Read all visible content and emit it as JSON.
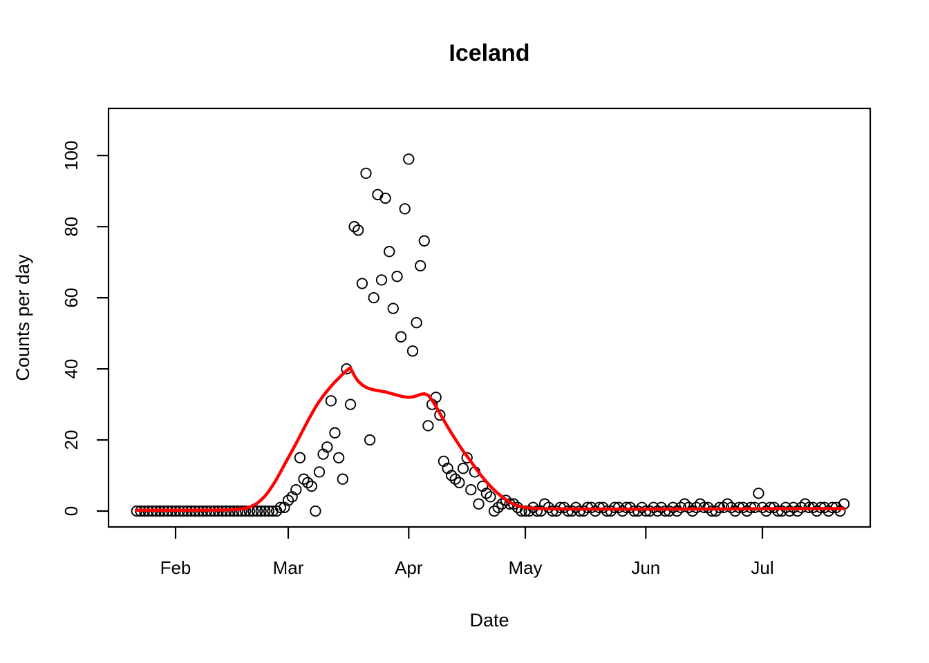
{
  "figure": {
    "title": "Iceland",
    "x_axis_label": "Date",
    "y_axis_label": "Counts per day"
  },
  "colors": {
    "background": "#FFFFFF",
    "points": "#000000",
    "fit_line": "#FF0000",
    "axis": "#000000"
  },
  "chart_data": {
    "type": "scatter",
    "title": "Iceland",
    "xlabel": "Date",
    "ylabel": "Counts per day",
    "x_unit": "daily observations, day 0 = late January",
    "grid": false,
    "legend": false,
    "x_tick_labels": [
      "Feb",
      "Mar",
      "Apr",
      "May",
      "Jun",
      "Jul"
    ],
    "x_tick_days": [
      10,
      39,
      70,
      100,
      131,
      161
    ],
    "y_ticks": [
      0,
      20,
      40,
      60,
      80,
      100
    ],
    "x_range_days": [
      -7.25,
      188.75
    ],
    "y_range": [
      -4.47,
      113.25
    ],
    "series": [
      {
        "name": "observed-daily-counts",
        "type": "points",
        "marker": "open-circle",
        "color": "#000000",
        "start_day": 0,
        "values": [
          0,
          0,
          0,
          0,
          0,
          0,
          0,
          0,
          0,
          0,
          0,
          0,
          0,
          0,
          0,
          0,
          0,
          0,
          0,
          0,
          0,
          0,
          0,
          0,
          0,
          0,
          0,
          0,
          0,
          0,
          0,
          0,
          0,
          0,
          0,
          0,
          0,
          1,
          1,
          3,
          4,
          6,
          15,
          9,
          8,
          7,
          0,
          11,
          16,
          18,
          31,
          22,
          15,
          9,
          40,
          30,
          80,
          79,
          64,
          95,
          20,
          60,
          89,
          65,
          88,
          73,
          57,
          66,
          49,
          85,
          99,
          45,
          53,
          69,
          76,
          24,
          30,
          32,
          27,
          14,
          12,
          10,
          9,
          8,
          12,
          15,
          6,
          11,
          2,
          7,
          5,
          4,
          0,
          1,
          2,
          3,
          2,
          2,
          1,
          0,
          0,
          0,
          1,
          0,
          0,
          2,
          1,
          0,
          0,
          1,
          1,
          0,
          0,
          1,
          0,
          0,
          1,
          1,
          0,
          1,
          1,
          0,
          0,
          1,
          1,
          0,
          1,
          1,
          0,
          0,
          1,
          0,
          0,
          1,
          0,
          1,
          0,
          0,
          1,
          0,
          1,
          2,
          1,
          0,
          1,
          2,
          1,
          1,
          0,
          0,
          1,
          1,
          2,
          1,
          0,
          1,
          1,
          0,
          1,
          1,
          5,
          1,
          0,
          1,
          1,
          0,
          0,
          1,
          0,
          1,
          0,
          1,
          2,
          1,
          1,
          0,
          1,
          1,
          0,
          1,
          1,
          0,
          2
        ]
      },
      {
        "name": "fitted-curve",
        "type": "line",
        "color": "#FF0000",
        "points": [
          [
            0,
            0.25
          ],
          [
            12,
            0.25
          ],
          [
            18,
            0.27
          ],
          [
            22,
            0.3
          ],
          [
            25,
            0.4
          ],
          [
            27,
            0.6
          ],
          [
            28,
            0.8
          ],
          [
            29,
            1.1
          ],
          [
            30,
            1.6
          ],
          [
            31,
            2.2
          ],
          [
            32,
            3.1
          ],
          [
            33,
            4.2
          ],
          [
            34,
            5.6
          ],
          [
            35,
            7.2
          ],
          [
            36,
            9
          ],
          [
            37,
            11
          ],
          [
            38,
            13
          ],
          [
            39,
            15
          ],
          [
            40,
            17
          ],
          [
            41,
            19
          ],
          [
            42,
            21.1
          ],
          [
            43,
            23.2
          ],
          [
            44,
            25.3
          ],
          [
            45,
            27.3
          ],
          [
            46,
            29.2
          ],
          [
            47,
            30.9
          ],
          [
            48,
            32.4
          ],
          [
            49,
            33.8
          ],
          [
            50,
            35.1
          ],
          [
            51,
            36.3
          ],
          [
            52,
            37.4
          ],
          [
            53,
            38.5
          ],
          [
            54,
            39.5
          ],
          [
            55,
            40.3
          ],
          [
            56,
            38.1
          ],
          [
            57,
            36.5
          ],
          [
            58,
            35.5
          ],
          [
            59,
            34.8
          ],
          [
            60,
            34.4
          ],
          [
            61,
            34.1
          ],
          [
            62,
            33.9
          ],
          [
            63,
            33.7
          ],
          [
            64,
            33.5
          ],
          [
            65,
            33.2
          ],
          [
            66,
            32.9
          ],
          [
            67,
            32.6
          ],
          [
            68,
            32.3
          ],
          [
            69,
            32.1
          ],
          [
            70,
            32
          ],
          [
            71,
            32.1
          ],
          [
            72,
            32.4
          ],
          [
            73,
            32.8
          ],
          [
            74,
            33
          ],
          [
            75,
            32.6
          ],
          [
            76,
            31.2
          ],
          [
            77,
            29.4
          ],
          [
            78,
            27.5
          ],
          [
            79,
            25.6
          ],
          [
            80,
            23.7
          ],
          [
            81,
            21.9
          ],
          [
            82,
            20.2
          ],
          [
            83,
            18.5
          ],
          [
            84,
            16.9
          ],
          [
            85,
            15.4
          ],
          [
            86,
            13.9
          ],
          [
            87,
            12.4
          ],
          [
            88,
            10.9
          ],
          [
            89,
            9.5
          ],
          [
            90,
            8.2
          ],
          [
            91,
            7
          ],
          [
            92,
            5.9
          ],
          [
            93,
            4.9
          ],
          [
            94,
            4
          ],
          [
            95,
            3.2
          ],
          [
            96,
            2.5
          ],
          [
            97,
            1.9
          ],
          [
            98,
            1.5
          ],
          [
            99,
            1.2
          ],
          [
            100,
            1
          ],
          [
            102,
            0.8
          ],
          [
            104,
            0.68
          ],
          [
            108,
            0.6
          ],
          [
            115,
            0.57
          ],
          [
            125,
            0.55
          ],
          [
            140,
            0.57
          ],
          [
            155,
            0.6
          ],
          [
            165,
            0.65
          ],
          [
            175,
            0.68
          ],
          [
            182,
            0.7
          ]
        ]
      }
    ]
  }
}
